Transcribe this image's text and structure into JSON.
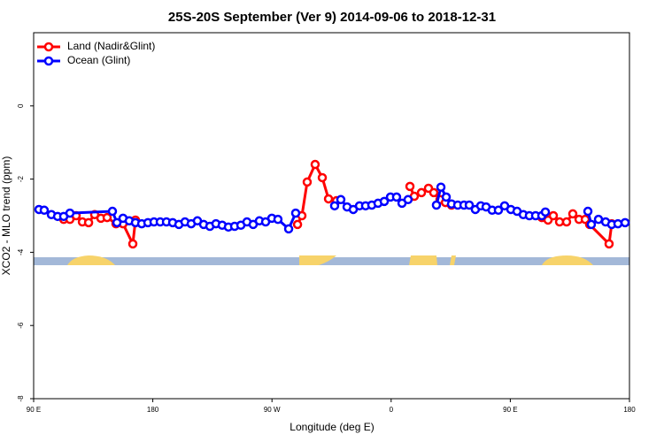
{
  "chart_data": {
    "type": "line",
    "title": "25S-20S September (Ver 9)   2014-09-06 to 2018-12-31",
    "x_label": "Longitude (deg E)",
    "y_label": "XCO2 - MLO trend (ppm)",
    "xlim": [
      90,
      540
    ],
    "ylim": [
      -8,
      2
    ],
    "xticks": [
      {
        "value": 90,
        "label": "90 E"
      },
      180,
      {
        "value": 270,
        "label": "90 W"
      },
      {
        "value": 360,
        "label": "0"
      },
      {
        "value": 450,
        "label": "90 E"
      },
      {
        "value": 540,
        "label": "180"
      }
    ],
    "yticks": [
      0,
      -2,
      -4,
      -6,
      -8
    ],
    "legend": "top-left",
    "series": [
      {
        "name": "Land (Nadir&Glint)",
        "color": "#ff0000",
        "x": [
          112.7,
          117.4,
          122.1,
          126.8,
          131.5,
          136.1,
          140.8,
          145.5,
          152.2,
          157.5,
          164.9,
          166.9,
          null,
          289.3,
          292.6,
          296.6,
          302.6,
          308.0,
          312.7,
          318.7,
          null,
          374.2,
          377.5,
          382.9,
          388.2,
          392.2,
          396.9,
          401.0,
          405.6,
          null,
          473.8,
          478.5,
          482.5,
          487.2,
          492.5,
          497.2,
          501.9,
          506.6,
          509.9,
          524.6,
          526.6
        ],
        "values": [
          -3.1,
          -3.1,
          -3.0,
          -3.17,
          -3.19,
          -2.97,
          -3.07,
          -3.05,
          -3.22,
          -3.22,
          -3.77,
          -3.12,
          null,
          -3.24,
          -3.0,
          -2.08,
          -1.6,
          -1.96,
          -2.54,
          -2.59,
          null,
          -2.2,
          -2.47,
          -2.37,
          -2.25,
          -2.37,
          -2.56,
          -2.64,
          -2.71,
          null,
          -3.05,
          -3.12,
          -3.0,
          -3.17,
          -3.17,
          -2.95,
          -3.1,
          -3.1,
          -3.24,
          -3.77,
          -3.22
        ]
      },
      {
        "name": "Ocean (Glint)",
        "color": "#0000ff",
        "x": [
          94.0,
          98.0,
          103.4,
          108.1,
          112.7,
          117.4,
          149.5,
          152.9,
          157.5,
          162.2,
          166.9,
          171.6,
          176.3,
          180.9,
          185.6,
          190.3,
          195.0,
          199.7,
          204.3,
          209.0,
          213.7,
          218.4,
          223.1,
          227.7,
          232.4,
          237.1,
          241.8,
          246.5,
          251.1,
          255.8,
          260.5,
          265.2,
          269.9,
          274.5,
          282.6,
          287.9,
          null,
          317.3,
          322.0,
          326.7,
          331.4,
          336.1,
          340.7,
          345.4,
          350.1,
          354.8,
          359.5,
          364.1,
          368.2,
          372.8,
          null,
          394.2,
          397.6,
          401.6,
          405.6,
          410.3,
          415.0,
          419.0,
          423.6,
          427.7,
          431.7,
          436.3,
          441.0,
          445.7,
          450.4,
          455.1,
          459.8,
          464.4,
          469.1,
          473.8,
          476.5,
          null,
          508.6,
          511.2,
          516.6,
          522.0,
          526.6,
          531.3,
          536.7
        ],
        "values": [
          -2.83,
          -2.85,
          -2.97,
          -3.02,
          -3.02,
          -2.93,
          -2.88,
          -3.19,
          -3.07,
          -3.14,
          -3.19,
          -3.22,
          -3.19,
          -3.17,
          -3.17,
          -3.17,
          -3.19,
          -3.24,
          -3.17,
          -3.22,
          -3.14,
          -3.24,
          -3.29,
          -3.22,
          -3.26,
          -3.31,
          -3.29,
          -3.26,
          -3.17,
          -3.24,
          -3.14,
          -3.17,
          -3.07,
          -3.1,
          -3.36,
          -2.93,
          null,
          -2.73,
          -2.56,
          -2.76,
          -2.83,
          -2.73,
          -2.73,
          -2.71,
          -2.66,
          -2.61,
          -2.49,
          -2.49,
          -2.66,
          -2.56,
          null,
          -2.71,
          -2.22,
          -2.49,
          -2.68,
          -2.71,
          -2.71,
          -2.71,
          -2.83,
          -2.73,
          -2.76,
          -2.85,
          -2.85,
          -2.73,
          -2.83,
          -2.88,
          -2.97,
          -3.0,
          -3.0,
          -3.0,
          -2.9,
          null,
          -2.88,
          -3.24,
          -3.1,
          -3.17,
          -3.24,
          -3.22,
          -3.19
        ]
      }
    ]
  }
}
